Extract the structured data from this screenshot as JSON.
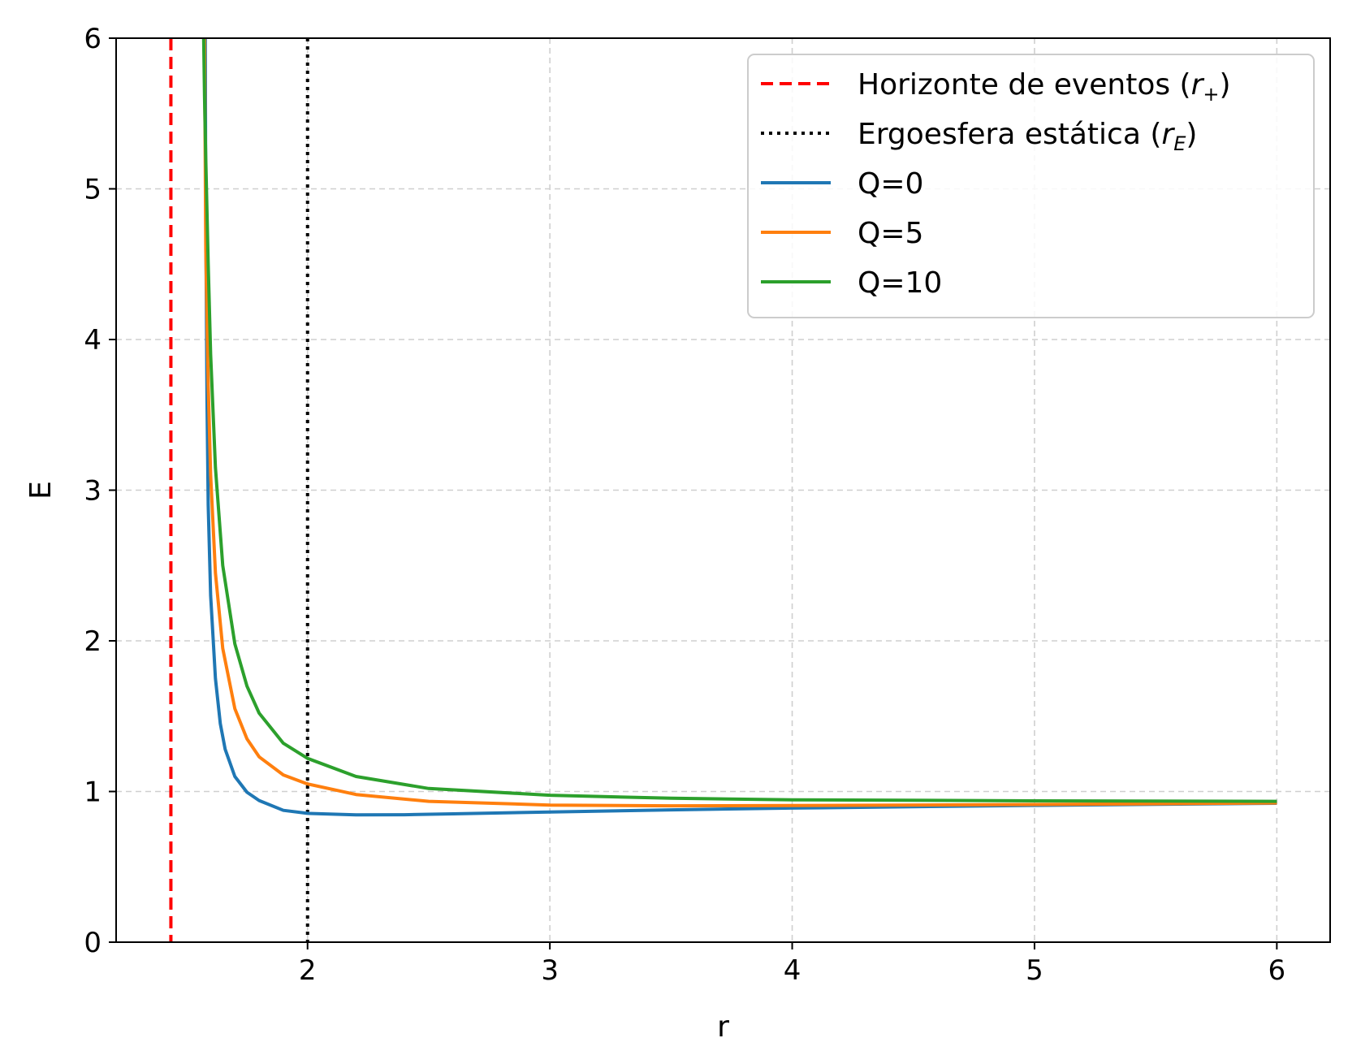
{
  "chart_data": {
    "type": "line",
    "title": "",
    "xlabel": "r",
    "ylabel": "E",
    "xlim": [
      1.21,
      6.22
    ],
    "ylim": [
      0,
      6
    ],
    "xticks": [
      2,
      3,
      4,
      5,
      6
    ],
    "yticks": [
      0,
      1,
      2,
      3,
      4,
      5,
      6
    ],
    "grid": true,
    "legend_position": "top-right",
    "reference_lines": [
      {
        "name": "Horizonte de eventos (r₊)",
        "label_main": "Horizonte de eventos (",
        "label_var": "r",
        "label_sub": "+",
        "label_close": ")",
        "x": 1.436,
        "color": "#ff0000",
        "style": "dashed"
      },
      {
        "name": "Ergoesfera estática (r_E)",
        "label_main": "Ergoesfera estática (",
        "label_var": "r",
        "label_sub": "E",
        "label_close": ")",
        "x": 2.0,
        "color": "#000000",
        "style": "dotted"
      }
    ],
    "series": [
      {
        "name": "Q=0",
        "color": "#1f77b4",
        "x": [
          1.5778,
          1.58,
          1.585,
          1.59,
          1.6,
          1.62,
          1.64,
          1.66,
          1.7,
          1.75,
          1.8,
          1.9,
          2.0,
          2.2,
          2.4,
          2.6,
          3.0,
          3.5,
          4.0,
          5.0,
          6.0
        ],
        "y": [
          6.0,
          4.8,
          3.6,
          2.9,
          2.3,
          1.75,
          1.45,
          1.28,
          1.1,
          0.995,
          0.94,
          0.875,
          0.855,
          0.845,
          0.846,
          0.852,
          0.864,
          0.878,
          0.89,
          0.908,
          0.922
        ]
      },
      {
        "name": "Q=5",
        "color": "#ff7f0e",
        "x": [
          1.5745,
          1.58,
          1.59,
          1.6,
          1.62,
          1.65,
          1.7,
          1.75,
          1.8,
          1.9,
          2.0,
          2.2,
          2.5,
          3.0,
          3.5,
          4.0,
          5.0,
          6.0
        ],
        "y": [
          6.0,
          4.6,
          3.7,
          3.1,
          2.45,
          1.95,
          1.55,
          1.35,
          1.23,
          1.11,
          1.05,
          0.98,
          0.935,
          0.91,
          0.905,
          0.907,
          0.914,
          0.924
        ]
      },
      {
        "name": "Q=10",
        "color": "#2ca02c",
        "x": [
          1.5712,
          1.575,
          1.58,
          1.59,
          1.6,
          1.62,
          1.65,
          1.7,
          1.75,
          1.8,
          1.9,
          2.0,
          2.2,
          2.5,
          3.0,
          3.5,
          4.0,
          5.0,
          6.0
        ],
        "y": [
          6.0,
          5.6,
          5.2,
          4.5,
          3.9,
          3.15,
          2.5,
          1.98,
          1.7,
          1.52,
          1.32,
          1.22,
          1.1,
          1.02,
          0.975,
          0.955,
          0.945,
          0.938,
          0.935
        ]
      }
    ]
  }
}
